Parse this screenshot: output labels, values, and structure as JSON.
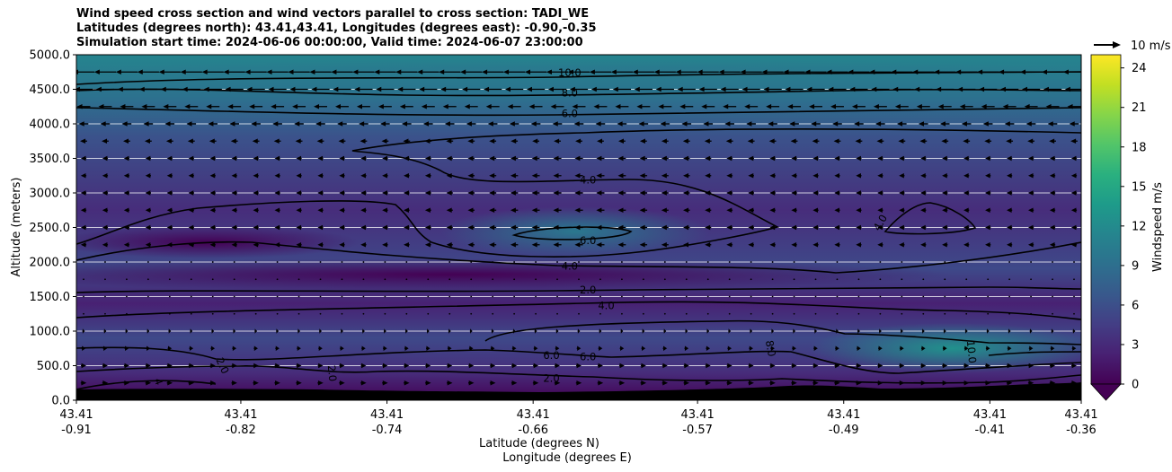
{
  "chart_data": {
    "type": "contourf",
    "title": [
      "Wind speed cross section and wind vectors parallel to cross section: TADI_WE",
      "Latitudes (degrees north): 43.41,43.41, Longitudes (degrees east): -0.90,-0.35",
      "Simulation start time: 2024-06-06 00:00:00, Valid time: 2024-06-07 23:00:00"
    ],
    "ylabel": "Altitude (meters)",
    "xlabel_lat": "Latitude (degrees N)",
    "xlabel_lon": "Longitude (degrees E)",
    "ylim": [
      0,
      5000
    ],
    "yticks": [
      "0.0",
      "500.0",
      "1000.0",
      "1500.0",
      "2000.0",
      "2500.0",
      "3000.0",
      "3500.0",
      "4000.0",
      "4500.0",
      "5000.0"
    ],
    "ytick_values": [
      0,
      500,
      1000,
      1500,
      2000,
      2500,
      3000,
      3500,
      4000,
      4500,
      5000
    ],
    "x_range": [
      -0.91,
      -0.36
    ],
    "xticks": [
      {
        "lat": "43.41",
        "lon": "-0.91",
        "value": -0.91
      },
      {
        "lat": "43.41",
        "lon": "-0.82",
        "value": -0.82
      },
      {
        "lat": "43.41",
        "lon": "-0.74",
        "value": -0.74
      },
      {
        "lat": "43.41",
        "lon": "-0.66",
        "value": -0.66
      },
      {
        "lat": "43.41",
        "lon": "-0.57",
        "value": -0.57
      },
      {
        "lat": "43.41",
        "lon": "-0.49",
        "value": -0.49
      },
      {
        "lat": "43.41",
        "lon": "-0.41",
        "value": -0.41
      },
      {
        "lat": "43.41",
        "lon": "-0.36",
        "value": -0.36
      }
    ],
    "horizontal_gridlines": [
      500,
      1000,
      1500,
      2000,
      2500,
      3000,
      3500,
      4000,
      4500
    ],
    "contour_labels": [
      {
        "text": "10.0",
        "lon": -0.64,
        "alt": 4740,
        "angle": 0
      },
      {
        "text": "8.0",
        "lon": -0.64,
        "alt": 4450,
        "angle": 0
      },
      {
        "text": "6.0",
        "lon": -0.64,
        "alt": 4150,
        "angle": 0
      },
      {
        "text": "4.0",
        "lon": -0.63,
        "alt": 3190,
        "angle": 0
      },
      {
        "text": "6.0",
        "lon": -0.63,
        "alt": 2310,
        "angle": 0
      },
      {
        "text": "4.0",
        "lon": -0.64,
        "alt": 1940,
        "angle": 0
      },
      {
        "text": "2.0",
        "lon": -0.63,
        "alt": 1600,
        "angle": 0
      },
      {
        "text": "4.0",
        "lon": -0.62,
        "alt": 1370,
        "angle": 0
      },
      {
        "text": "6.0",
        "lon": -0.65,
        "alt": 650,
        "angle": 0
      },
      {
        "text": "6.0",
        "lon": -0.63,
        "alt": 630,
        "angle": 0
      },
      {
        "text": "2.0",
        "lon": -0.65,
        "alt": 320,
        "angle": 0
      },
      {
        "text": "8.0",
        "lon": -0.53,
        "alt": 750,
        "angle": 80
      },
      {
        "text": "10.0",
        "lon": -0.42,
        "alt": 700,
        "angle": 85
      },
      {
        "text": "4.0",
        "lon": -0.47,
        "alt": 2570,
        "angle": -60
      },
      {
        "text": "2.0",
        "lon": -0.83,
        "alt": 500,
        "angle": 65
      },
      {
        "text": "2.0",
        "lon": -0.77,
        "alt": 390,
        "angle": 85
      },
      {
        "text": "4",
        "lon": -0.865,
        "alt": 270,
        "angle": 70
      }
    ],
    "quiver_key": {
      "label": "10 m/s",
      "value": 10
    },
    "colorbar": {
      "label": "Windspeed m/s",
      "range": [
        0,
        25
      ],
      "ticks": [
        0,
        3,
        6,
        9,
        12,
        15,
        18,
        21,
        24
      ],
      "extend": "min",
      "colormap": "viridis"
    },
    "terrain_color": "#000000"
  }
}
